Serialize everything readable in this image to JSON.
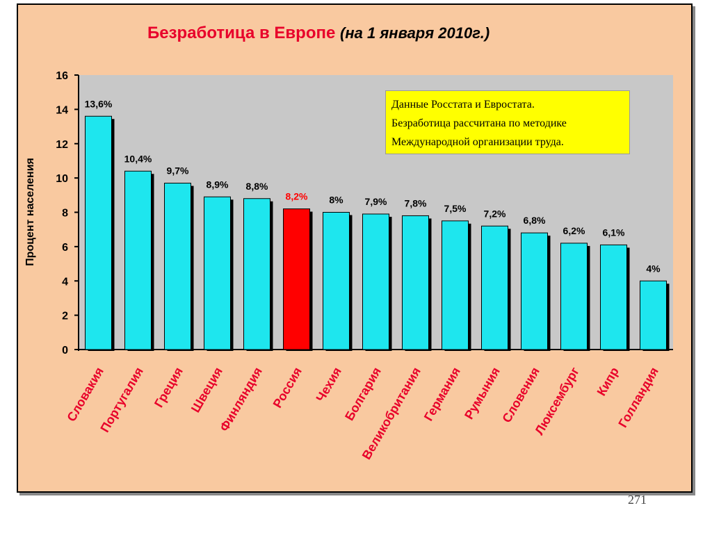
{
  "slide": {
    "page_number": "271"
  },
  "colors": {
    "bar": "#1ee6ee",
    "highlight": "#ff0000",
    "background": "#f9c9a0",
    "plot_area": "#c8c8c8",
    "title": "#e8002a",
    "note_box": "#ffff00"
  },
  "chart_data": {
    "type": "bar",
    "title": "Безработица в Европе",
    "subtitle": "(на 1 января 2010г.)",
    "xlabel": "",
    "ylabel": "Процент населения",
    "ylim": [
      0,
      16
    ],
    "yticks": [
      "0",
      "2",
      "4",
      "6",
      "8",
      "10",
      "12",
      "14",
      "16"
    ],
    "categories": [
      "Словакия",
      "Португалия",
      "Греция",
      "Швеция",
      "Финляндия",
      "Россия",
      "Чехия",
      "Болгария",
      "Великобритания",
      "Германия",
      "Румыния",
      "Словения",
      "Люксембург",
      "Кипр",
      "Голландия"
    ],
    "values": [
      13.6,
      10.4,
      9.7,
      8.9,
      8.8,
      8.2,
      8,
      7.9,
      7.8,
      7.5,
      7.2,
      6.8,
      6.2,
      6.1,
      4
    ],
    "data_labels": [
      "13,6%",
      "10,4%",
      "9,7%",
      "8,9%",
      "8,8%",
      "8,2%",
      "8%",
      "7,9%",
      "7,8%",
      "7,5%",
      "7,2%",
      "6,8%",
      "6,2%",
      "6,1%",
      "4%"
    ],
    "highlight_category": "Россия",
    "grid": false,
    "annotation": [
      "Данные Росстата и Евростата.",
      "Безработица рассчитана по методике",
      "Международной  организации труда."
    ]
  }
}
